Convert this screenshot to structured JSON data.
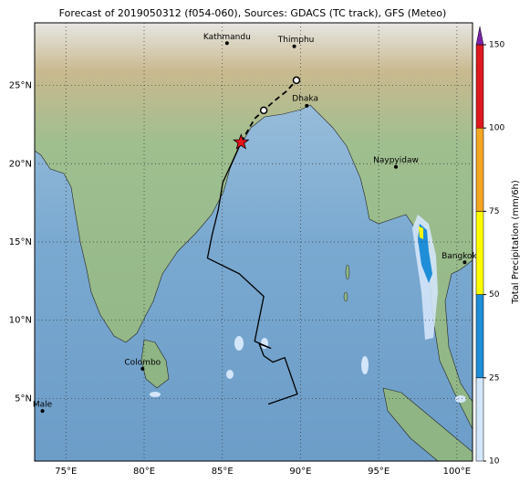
{
  "map": {
    "title": "Forecast of 2019050312 (f054-060), Sources: GDACS (TC track), GFS (Meteo)",
    "xlim": [
      73,
      101
    ],
    "ylim": [
      1,
      29
    ],
    "xticks": [
      {
        "value": 75,
        "label": "75°E"
      },
      {
        "value": 80,
        "label": "80°E"
      },
      {
        "value": 85,
        "label": "85°E"
      },
      {
        "value": 90,
        "label": "90°E"
      },
      {
        "value": 95,
        "label": "95°E"
      },
      {
        "value": 100,
        "label": "100°E"
      }
    ],
    "yticks": [
      {
        "value": 5,
        "label": "5°N"
      },
      {
        "value": 10,
        "label": "10°N"
      },
      {
        "value": 15,
        "label": "15°N"
      },
      {
        "value": 20,
        "label": "20°N"
      },
      {
        "value": 25,
        "label": "25°N"
      }
    ],
    "grid": true,
    "cities": [
      {
        "name": "Kathmandu",
        "lon": 85.3,
        "lat": 27.7
      },
      {
        "name": "Thimphu",
        "lon": 89.6,
        "lat": 27.5
      },
      {
        "name": "Dhaka",
        "lon": 90.4,
        "lat": 23.7
      },
      {
        "name": "Naypyidaw",
        "lon": 96.1,
        "lat": 19.8
      },
      {
        "name": "Bangkok",
        "lon": 100.5,
        "lat": 13.7
      },
      {
        "name": "Colombo",
        "lon": 79.9,
        "lat": 6.9
      },
      {
        "name": "Male",
        "lon": 73.5,
        "lat": 4.2
      }
    ],
    "track": {
      "observed": {
        "lon": [
          87.94,
          89.8,
          88.99,
          88.23,
          87.65,
          87.36,
          88.12,
          87.07,
          87.65,
          86.08,
          84.05,
          84.34,
          84.74,
          85.03,
          85.62,
          86.2
        ],
        "lat": [
          4.64,
          5.28,
          7.61,
          7.32,
          7.73,
          8.49,
          8.2,
          8.66,
          11.52,
          12.97,
          13.97,
          15.42,
          17.05,
          18.8,
          20.08,
          21.37
        ]
      },
      "forecast": {
        "lon": [
          86.2,
          87.07,
          87.65,
          88.23,
          89.1,
          89.74
        ],
        "lat": [
          21.37,
          22.88,
          23.41,
          23.93,
          24.63,
          25.33
        ]
      }
    },
    "colorbar": {
      "label": "Total Precipitation (mm/6h)",
      "ticks": [
        10,
        25,
        50,
        75,
        100,
        150
      ],
      "colors": [
        "#d4e6fa",
        "#1f8ed8",
        "#ffff00",
        "#f5a623",
        "#dd1820"
      ],
      "extend_color": "#7b22a8"
    }
  }
}
